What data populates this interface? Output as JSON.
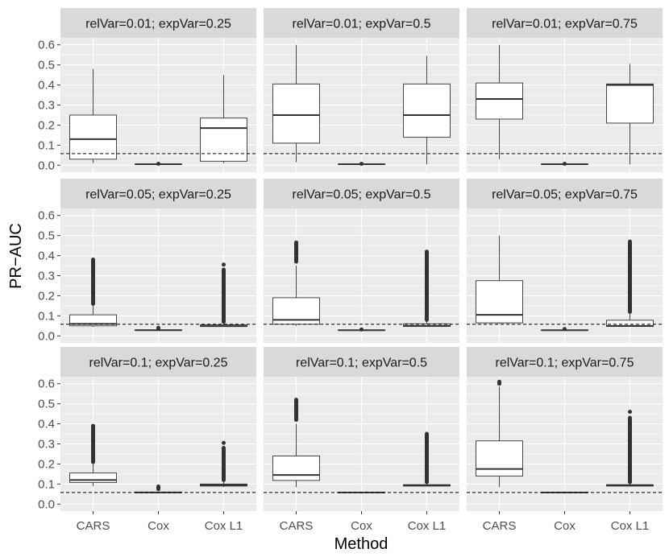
{
  "chart_data": {
    "type": "boxplot",
    "title": "",
    "xlabel": "Method",
    "ylabel": "PR−AUC",
    "ylim": [
      -0.035,
      0.635
    ],
    "yticks": [
      0.0,
      0.1,
      0.2,
      0.3,
      0.4,
      0.5,
      0.6
    ],
    "ytick_labels": [
      "0.0",
      "0.1",
      "0.2",
      "0.3",
      "0.4",
      "0.5",
      "0.6"
    ],
    "categories": [
      "CARS",
      "Cox",
      "Cox L1"
    ],
    "colors": {
      "panel_bg": "#ebebeb",
      "strip_bg": "#d9d9d9",
      "grid": "#ffffff",
      "box_fill": "#ffffff",
      "line": "#333333",
      "text": "#1a1a1a",
      "tick_text": "#4d4d4d"
    },
    "panels": [
      {
        "label": "relVar=0.01; expVar=0.25",
        "baseline": 0.058,
        "boxes": [
          {
            "method": "CARS",
            "min": 0.01,
            "q1": 0.03,
            "median": 0.13,
            "q3": 0.25,
            "max": 0.48,
            "outliers": []
          },
          {
            "method": "Cox",
            "min": 0.005,
            "q1": 0.005,
            "median": 0.005,
            "q3": 0.005,
            "max": 0.005,
            "outliers": [
              0.007
            ]
          },
          {
            "method": "Cox L1",
            "min": 0.01,
            "q1": 0.02,
            "median": 0.185,
            "q3": 0.235,
            "max": 0.45,
            "outliers": []
          }
        ]
      },
      {
        "label": "relVar=0.01; expVar=0.5",
        "baseline": 0.058,
        "boxes": [
          {
            "method": "CARS",
            "min": 0.015,
            "q1": 0.11,
            "median": 0.25,
            "q3": 0.405,
            "max": 0.6,
            "outliers": []
          },
          {
            "method": "Cox",
            "min": 0.005,
            "q1": 0.005,
            "median": 0.005,
            "q3": 0.005,
            "max": 0.005,
            "outliers": [
              0.007
            ]
          },
          {
            "method": "Cox L1",
            "min": 0.005,
            "q1": 0.14,
            "median": 0.25,
            "q3": 0.405,
            "max": 0.545,
            "outliers": []
          }
        ]
      },
      {
        "label": "relVar=0.01; expVar=0.75",
        "baseline": 0.058,
        "boxes": [
          {
            "method": "CARS",
            "min": 0.03,
            "q1": 0.23,
            "median": 0.33,
            "q3": 0.41,
            "max": 0.6,
            "outliers": []
          },
          {
            "method": "Cox",
            "min": 0.005,
            "q1": 0.005,
            "median": 0.005,
            "q3": 0.005,
            "max": 0.005,
            "outliers": [
              0.007
            ]
          },
          {
            "method": "Cox L1",
            "min": 0.005,
            "q1": 0.21,
            "median": 0.4,
            "q3": 0.405,
            "max": 0.505,
            "outliers": []
          }
        ]
      },
      {
        "label": "relVar=0.05; expVar=0.25",
        "baseline": 0.058,
        "boxes": [
          {
            "method": "CARS",
            "min": 0.045,
            "q1": 0.05,
            "median": 0.06,
            "q3": 0.105,
            "max": 0.15,
            "outliers": [
              0.16,
              0.18,
              0.2,
              0.22,
              0.24,
              0.26,
              0.28,
              0.3,
              0.32,
              0.34,
              0.36,
              0.38
            ]
          },
          {
            "method": "Cox",
            "min": 0.027,
            "q1": 0.027,
            "median": 0.028,
            "q3": 0.03,
            "max": 0.032,
            "outliers": [
              0.035,
              0.04
            ]
          },
          {
            "method": "Cox L1",
            "min": 0.045,
            "q1": 0.047,
            "median": 0.049,
            "q3": 0.055,
            "max": 0.065,
            "outliers": [
              0.07,
              0.09,
              0.11,
              0.13,
              0.15,
              0.17,
              0.19,
              0.21,
              0.23,
              0.25,
              0.27,
              0.29,
              0.31,
              0.33,
              0.355
            ]
          }
        ]
      },
      {
        "label": "relVar=0.05; expVar=0.5",
        "baseline": 0.058,
        "boxes": [
          {
            "method": "CARS",
            "min": 0.05,
            "q1": 0.058,
            "median": 0.08,
            "q3": 0.19,
            "max": 0.35,
            "outliers": [
              0.37,
              0.39,
              0.41,
              0.43,
              0.45,
              0.465
            ]
          },
          {
            "method": "Cox",
            "min": 0.027,
            "q1": 0.027,
            "median": 0.028,
            "q3": 0.029,
            "max": 0.03,
            "outliers": [
              0.032
            ]
          },
          {
            "method": "Cox L1",
            "min": 0.045,
            "q1": 0.047,
            "median": 0.05,
            "q3": 0.06,
            "max": 0.075,
            "outliers": [
              0.08,
              0.1,
              0.12,
              0.14,
              0.16,
              0.18,
              0.2,
              0.22,
              0.24,
              0.26,
              0.28,
              0.3,
              0.32,
              0.34,
              0.36,
              0.38,
              0.4,
              0.42
            ]
          }
        ]
      },
      {
        "label": "relVar=0.05; expVar=0.75",
        "baseline": 0.058,
        "boxes": [
          {
            "method": "CARS",
            "min": 0.06,
            "q1": 0.065,
            "median": 0.105,
            "q3": 0.275,
            "max": 0.5,
            "outliers": []
          },
          {
            "method": "Cox",
            "min": 0.027,
            "q1": 0.027,
            "median": 0.028,
            "q3": 0.029,
            "max": 0.03,
            "outliers": [
              0.034
            ]
          },
          {
            "method": "Cox L1",
            "min": 0.045,
            "q1": 0.047,
            "median": 0.05,
            "q3": 0.078,
            "max": 0.11,
            "outliers": [
              0.12,
              0.14,
              0.16,
              0.18,
              0.2,
              0.22,
              0.24,
              0.26,
              0.28,
              0.3,
              0.32,
              0.34,
              0.36,
              0.38,
              0.4,
              0.42,
              0.44,
              0.46,
              0.47
            ]
          }
        ]
      },
      {
        "label": "relVar=0.1; expVar=0.25",
        "baseline": 0.058,
        "boxes": [
          {
            "method": "CARS",
            "min": 0.09,
            "q1": 0.108,
            "median": 0.12,
            "q3": 0.155,
            "max": 0.2,
            "outliers": [
              0.21,
              0.23,
              0.25,
              0.27,
              0.29,
              0.31,
              0.33,
              0.35,
              0.37,
              0.39
            ]
          },
          {
            "method": "Cox",
            "min": 0.056,
            "q1": 0.057,
            "median": 0.058,
            "q3": 0.06,
            "max": 0.062,
            "outliers": [
              0.075,
              0.088
            ]
          },
          {
            "method": "Cox L1",
            "min": 0.085,
            "q1": 0.09,
            "median": 0.095,
            "q3": 0.1,
            "max": 0.11,
            "outliers": [
              0.12,
              0.14,
              0.16,
              0.18,
              0.2,
              0.22,
              0.24,
              0.26,
              0.28,
              0.305
            ]
          }
        ]
      },
      {
        "label": "relVar=0.1; expVar=0.5",
        "baseline": 0.058,
        "boxes": [
          {
            "method": "CARS",
            "min": 0.085,
            "q1": 0.118,
            "median": 0.145,
            "q3": 0.24,
            "max": 0.4,
            "outliers": [
              0.42,
              0.44,
              0.46,
              0.48,
              0.5,
              0.52
            ]
          },
          {
            "method": "Cox",
            "min": 0.056,
            "q1": 0.057,
            "median": 0.058,
            "q3": 0.059,
            "max": 0.06,
            "outliers": []
          },
          {
            "method": "Cox L1",
            "min": 0.088,
            "q1": 0.09,
            "median": 0.093,
            "q3": 0.097,
            "max": 0.102,
            "outliers": [
              0.11,
              0.13,
              0.15,
              0.17,
              0.19,
              0.21,
              0.23,
              0.25,
              0.27,
              0.29,
              0.31,
              0.33,
              0.35
            ]
          }
        ]
      },
      {
        "label": "relVar=0.1; expVar=0.75",
        "baseline": 0.058,
        "boxes": [
          {
            "method": "CARS",
            "min": 0.085,
            "q1": 0.14,
            "median": 0.175,
            "q3": 0.315,
            "max": 0.585,
            "outliers": [
              0.6,
              0.61
            ]
          },
          {
            "method": "Cox",
            "min": 0.056,
            "q1": 0.057,
            "median": 0.058,
            "q3": 0.059,
            "max": 0.06,
            "outliers": []
          },
          {
            "method": "Cox L1",
            "min": 0.088,
            "q1": 0.09,
            "median": 0.093,
            "q3": 0.097,
            "max": 0.102,
            "outliers": [
              0.11,
              0.13,
              0.15,
              0.17,
              0.19,
              0.21,
              0.23,
              0.25,
              0.27,
              0.29,
              0.31,
              0.33,
              0.35,
              0.37,
              0.39,
              0.41,
              0.43,
              0.46
            ]
          }
        ]
      }
    ]
  }
}
